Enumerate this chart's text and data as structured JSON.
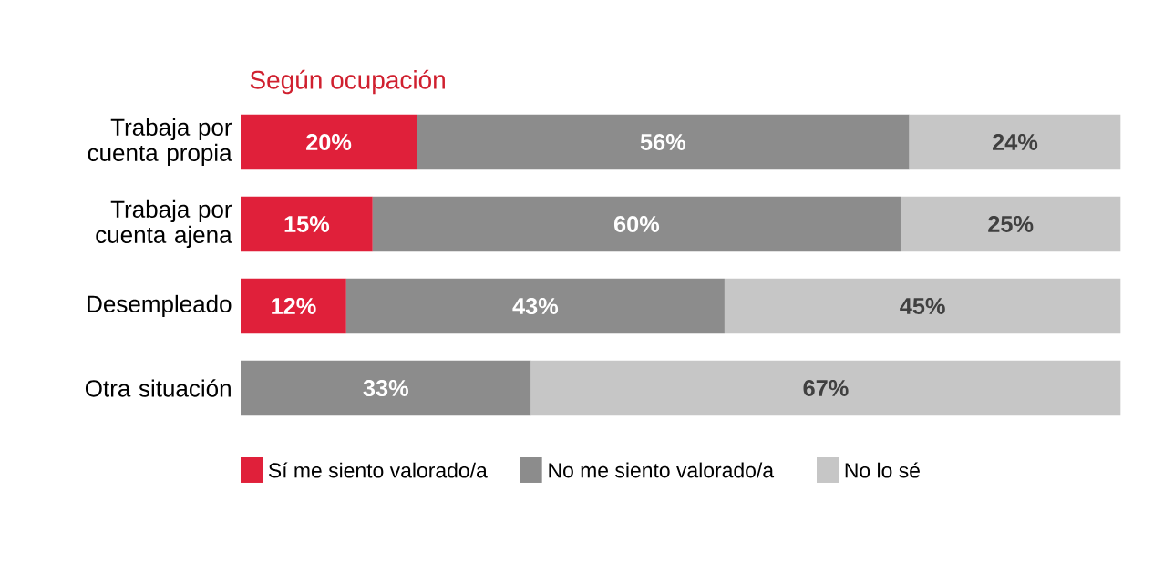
{
  "chart_data": {
    "type": "bar",
    "title": "Según ocupación",
    "orientation": "horizontal",
    "stacked": true,
    "xlim": [
      0,
      100
    ],
    "tick_labels": "y",
    "legend": "bottom",
    "categories": [
      "Trabaja por cuenta propia",
      "Trabaja por cuenta ajena",
      "Desempleado",
      "Otra situación"
    ],
    "series": [
      {
        "name": "Sí me siento valorado/a",
        "color": "#e0203a",
        "values": [
          20,
          15,
          12,
          null
        ],
        "value_labels": [
          "20%",
          "15%",
          "12%",
          null
        ]
      },
      {
        "name": "No me siento valorado/a",
        "color": "#8c8c8c",
        "values": [
          56,
          60,
          43,
          33
        ],
        "value_labels": [
          "56%",
          "60%",
          "43%",
          "33%"
        ]
      },
      {
        "name": "No lo sé",
        "color": "#c6c6c6",
        "values": [
          24,
          25,
          45,
          67
        ],
        "value_labels": [
          "24%",
          "25%",
          "45%",
          "67%"
        ]
      }
    ]
  }
}
